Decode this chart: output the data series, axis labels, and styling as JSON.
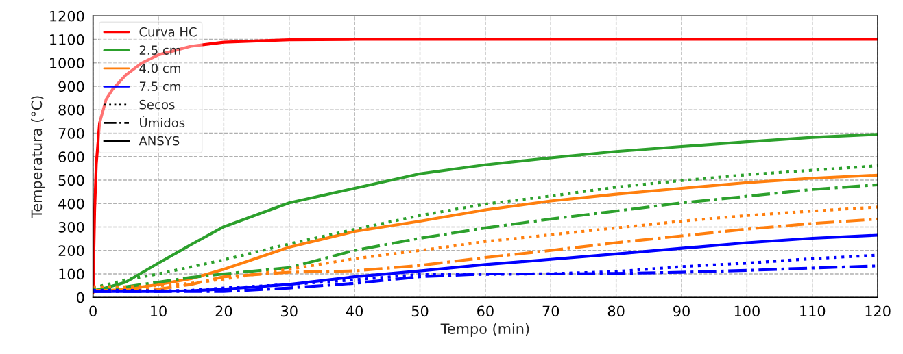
{
  "chart_data": {
    "type": "line",
    "xlabel": "Tempo (min)",
    "ylabel": "Temperatura (°C)",
    "x": [
      0,
      5,
      10,
      15,
      20,
      30,
      40,
      50,
      60,
      70,
      80,
      90,
      100,
      110,
      120
    ],
    "xlim": [
      0,
      120
    ],
    "xticks": [
      0,
      10,
      20,
      30,
      40,
      50,
      60,
      70,
      80,
      90,
      100,
      110,
      120
    ],
    "ylim": [
      0,
      1200
    ],
    "yticks": [
      0,
      100,
      200,
      300,
      400,
      500,
      600,
      700,
      800,
      900,
      1000,
      1100,
      1200
    ],
    "grid": true,
    "legend": "top left",
    "marker": "none",
    "series": [
      {
        "name": "Curva HC",
        "color": "#ff0000",
        "line_style": "solid",
        "x": [
          0,
          0.25,
          0.5,
          1,
          2,
          3,
          5,
          7.5,
          10,
          15,
          20,
          30,
          40,
          60,
          90,
          120
        ],
        "values": [
          20,
          374,
          569,
          743,
          844,
          887,
          948,
          1000,
          1034,
          1071,
          1088,
          1098,
          1100,
          1100,
          1100,
          1100
        ]
      },
      {
        "name": "2.5 cm",
        "color": "#2ca02c",
        "line_style": "solid",
        "values": [
          25,
          65,
          146,
          225,
          301,
          403,
          465,
          527,
          565,
          595,
          622,
          643,
          663,
          682,
          695
        ]
      },
      {
        "name": "4.0 cm",
        "color": "#ff7f0e",
        "line_style": "solid",
        "values": [
          25,
          35,
          55,
          80,
          120,
          214,
          281,
          325,
          373,
          411,
          440,
          465,
          489,
          508,
          521
        ]
      },
      {
        "name": "7.5 cm",
        "color": "#0000ff",
        "line_style": "solid",
        "values": [
          25,
          25,
          25,
          28,
          35,
          55,
          88,
          113,
          140,
          162,
          185,
          209,
          233,
          252,
          265
        ]
      },
      {
        "color": "#2ca02c",
        "line_style": "dotted",
        "values": [
          40,
          75,
          100,
          130,
          160,
          228,
          290,
          349,
          398,
          432,
          470,
          498,
          523,
          542,
          561
        ]
      },
      {
        "color": "#2ca02c",
        "line_style": "dashdot",
        "values": [
          30,
          45,
          65,
          85,
          100,
          127,
          200,
          252,
          296,
          334,
          368,
          403,
          431,
          460,
          480
        ]
      },
      {
        "color": "#ff7f0e",
        "line_style": "dotted",
        "values": [
          45,
          45,
          50,
          60,
          78,
          120,
          165,
          200,
          238,
          267,
          296,
          325,
          349,
          368,
          385
        ]
      },
      {
        "color": "#ff7f0e",
        "line_style": "dashdot",
        "values": [
          30,
          30,
          35,
          55,
          88,
          107,
          113,
          136,
          170,
          200,
          233,
          262,
          291,
          315,
          334
        ]
      },
      {
        "color": "#0000ff",
        "line_style": "dotted",
        "values": [
          30,
          30,
          28,
          30,
          40,
          55,
          75,
          98,
          98,
          101,
          110,
          131,
          146,
          165,
          180
        ]
      },
      {
        "color": "#0000ff",
        "line_style": "dashdot",
        "values": [
          25,
          25,
          25,
          25,
          25,
          40,
          60,
          88,
          100,
          100,
          102,
          107,
          115,
          125,
          134
        ]
      },
      {
        "name": "Secos",
        "color": "#000000",
        "line_style": "dotted",
        "values": [
          null,
          null,
          null,
          null,
          null,
          null,
          null,
          null,
          null,
          null,
          null,
          null,
          null,
          null,
          null
        ]
      },
      {
        "name": "Úmidos",
        "color": "#000000",
        "line_style": "dashdot",
        "values": [
          null,
          null,
          null,
          null,
          null,
          null,
          null,
          null,
          null,
          null,
          null,
          null,
          null,
          null,
          null
        ]
      },
      {
        "name": "ANSYS",
        "color": "#000000",
        "line_style": "solid",
        "values": [
          null,
          null,
          null,
          null,
          null,
          null,
          null,
          null,
          null,
          null,
          null,
          null,
          null,
          null,
          null
        ]
      }
    ]
  }
}
